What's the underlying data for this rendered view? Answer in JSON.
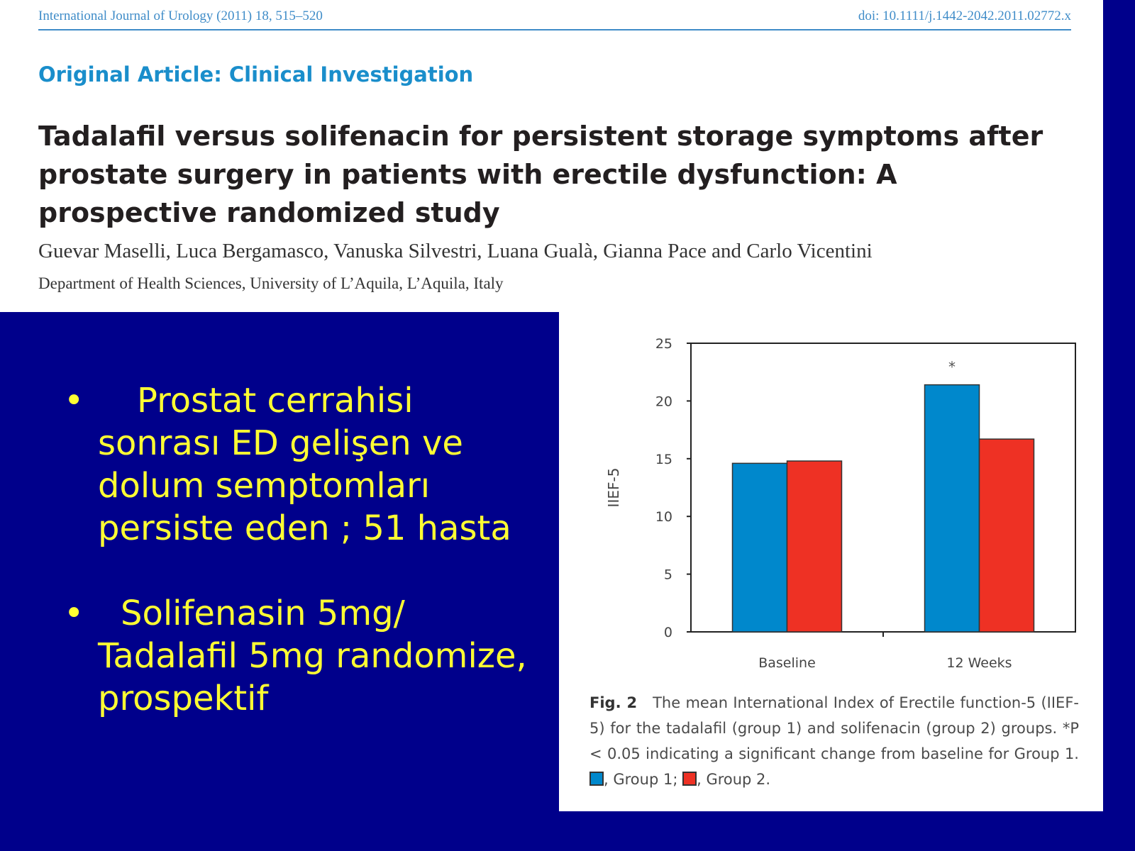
{
  "header": {
    "journal": "International Journal of Urology (2011) 18, 515–520",
    "doi": "doi: 10.1111/j.1442-2042.2011.02772.x",
    "article_type": "Original Article: Clinical Investigation",
    "title": "Tadalafil versus solifenacin for persistent storage symptoms after prostate surgery in patients with erectile dysfunction: A prospective randomized study",
    "authors": "Guevar Maselli, Luca Bergamasco, Vanuska Silvestri, Luana Gualà, Gianna Pace and Carlo Vicentini",
    "affiliation": "Department of Health Sciences, University of L’Aquila, L’Aquila, Italy"
  },
  "bullets": [
    {
      "marker": "•",
      "text": "Prostat cerrahisi sonrası ED gelişen ve dolum semptomları persiste eden ; 51 hasta"
    },
    {
      "marker": "•",
      "text": "Solifenasin 5mg/ Tadalafil 5mg randomize, prospektif"
    }
  ],
  "caption": {
    "label": "Fig. 2",
    "text": "The mean International Index of Erectile function-5 (IIEF- 5) for the tadalafil (group 1) and solifenacin (group 2) groups. *P < 0.05 indicating a significant change from baseline for Group 1.",
    "legend_g1": ", Group 1;",
    "legend_g2": ", Group 2."
  },
  "chart_data": {
    "type": "bar",
    "categories": [
      "Baseline",
      "12 Weeks"
    ],
    "series": [
      {
        "values": [
          14.6,
          21.4
        ],
        "color": "#0088cc"
      },
      {
        "values": [
          14.8,
          16.7
        ],
        "color": "#ee3124"
      }
    ],
    "ylabel": "IIEF-5",
    "ylim": [
      0,
      25
    ],
    "yticks": [
      0,
      5,
      10,
      15,
      20,
      25
    ],
    "annotations": [
      {
        "category": "12 Weeks",
        "series": 0,
        "text": "*"
      }
    ],
    "grid": false,
    "legend": "caption"
  }
}
